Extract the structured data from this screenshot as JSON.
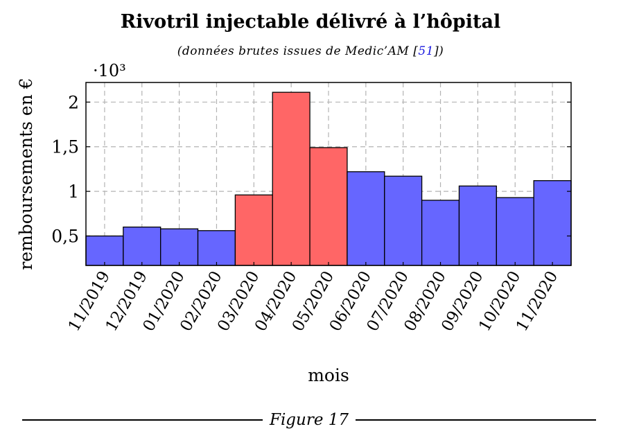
{
  "chart_data": {
    "type": "bar",
    "title": "Rivotril injectable délivré à l’hôpital",
    "subtitle_prefix": "(données brutes issues de Medic’AM [",
    "subtitle_ref": "51",
    "subtitle_suffix": "])",
    "xlabel": "mois",
    "ylabel": "remboursements en €",
    "y_multiplier_label": "·10³",
    "ylim": [
      0.17,
      2.22
    ],
    "yticks": [
      0.5,
      1,
      1.5,
      2
    ],
    "ytick_labels": [
      "0,5",
      "1",
      "1,5",
      "2"
    ],
    "grid": true,
    "categories": [
      "11/2019",
      "12/2019",
      "01/2020",
      "02/2020",
      "03/2020",
      "04/2020",
      "05/2020",
      "06/2020",
      "07/2020",
      "08/2020",
      "09/2020",
      "10/2020",
      "11/2020"
    ],
    "values": [
      0.5,
      0.6,
      0.58,
      0.56,
      0.96,
      2.11,
      1.49,
      1.22,
      1.17,
      0.9,
      1.06,
      0.93,
      1.12
    ],
    "bar_colors": [
      "#6666ff",
      "#6666ff",
      "#6666ff",
      "#6666ff",
      "#ff6666",
      "#ff6666",
      "#ff6666",
      "#6666ff",
      "#6666ff",
      "#6666ff",
      "#6666ff",
      "#6666ff",
      "#6666ff"
    ]
  },
  "caption": "Figure 17"
}
